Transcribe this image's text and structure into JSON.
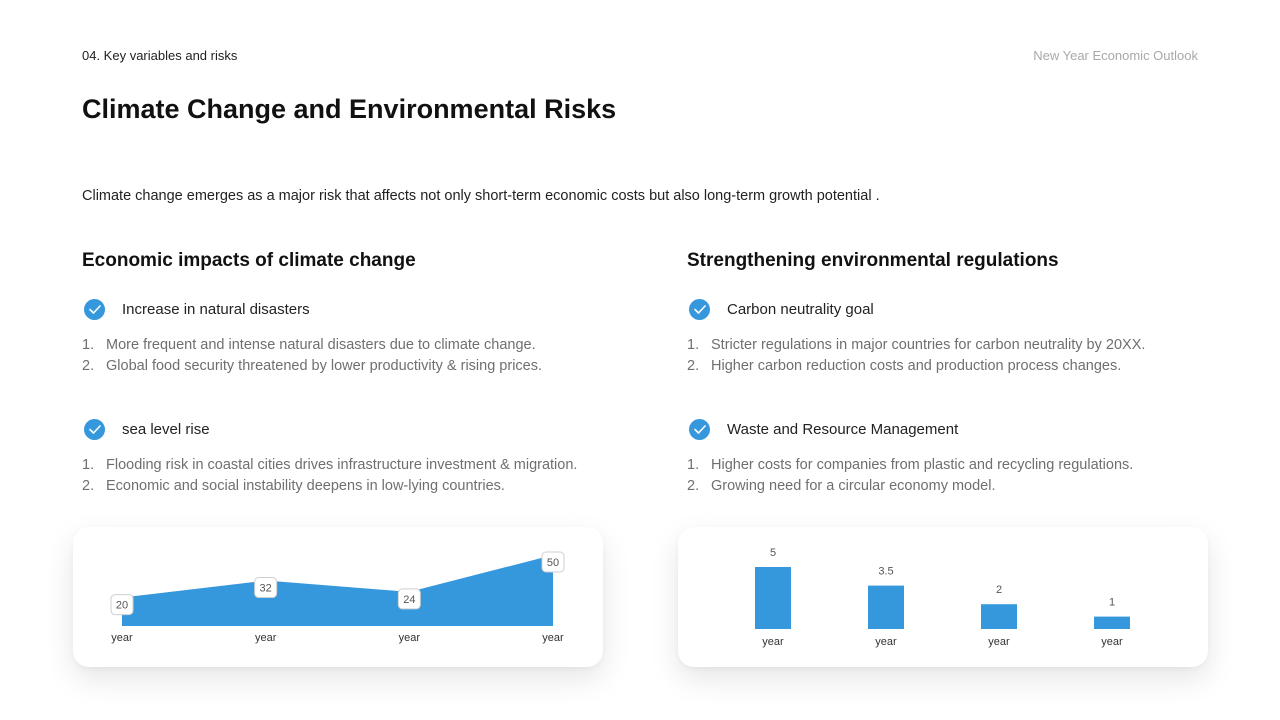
{
  "header": {
    "section_label": "04. Key variables and risks",
    "doc_title": "New Year Economic Outlook"
  },
  "title": "Climate Change and Environmental Risks",
  "intro": "Climate change emerges as a major risk that affects not only short-term economic costs but also long-term growth potential .",
  "left_column": {
    "heading": "Economic impacts of climate change",
    "items": [
      {
        "title": "Increase in natural disasters",
        "points": [
          "More frequent and intense natural disasters due to climate change.",
          "Global food security threatened by lower productivity & rising prices."
        ]
      },
      {
        "title": "sea level rise",
        "points": [
          "Flooding risk in coastal cities drives infrastructure investment & migration.",
          "Economic and social instability deepens in low-lying countries."
        ]
      }
    ]
  },
  "right_column": {
    "heading": "Strengthening environmental regulations",
    "items": [
      {
        "title": "Carbon neutrality goal",
        "points": [
          "Stricter regulations in major countries for carbon neutrality by 20XX.",
          "Higher carbon reduction costs and production process changes."
        ]
      },
      {
        "title": "Waste and Resource Management",
        "points": [
          "Higher costs for companies from plastic and recycling regulations.",
          "Growing need for a circular economy model."
        ]
      }
    ]
  },
  "icons": {
    "check": "check-icon"
  },
  "colors": {
    "accent": "#3597dc"
  },
  "chart_data": [
    {
      "type": "area",
      "categories": [
        "year",
        "year",
        "year",
        "year"
      ],
      "values": [
        20,
        32,
        24,
        50
      ],
      "ylim": [
        0,
        50
      ],
      "grid": false,
      "color": "#3597dc"
    },
    {
      "type": "bar",
      "categories": [
        "year",
        "year",
        "year",
        "year"
      ],
      "values": [
        5,
        3.5,
        2,
        1
      ],
      "value_labels": [
        "5",
        "3.5",
        "2",
        "1"
      ],
      "ylim": [
        0,
        5
      ],
      "grid": false,
      "color": "#3597dc"
    }
  ]
}
